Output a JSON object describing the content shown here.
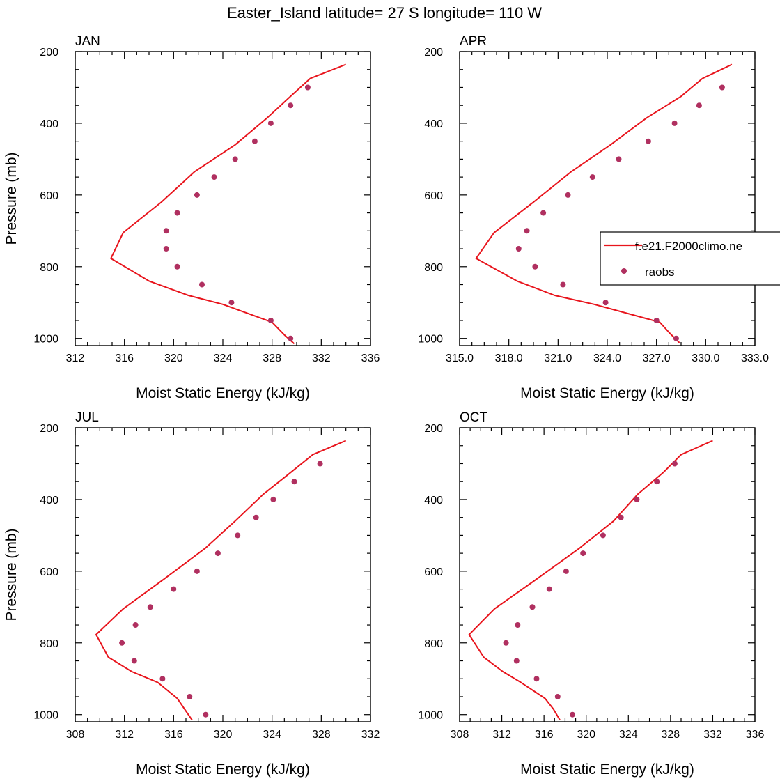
{
  "figure_title": "Easter_Island  latitude= 27 S longitude= 110 W",
  "legend": {
    "model_label": "f.e21.F2000climo.ne",
    "obs_label": "raobs",
    "model_color": "#e8141c",
    "obs_color": "#b03060"
  },
  "chart_data": [
    {
      "type": "line",
      "panel": "JAN",
      "xlabel": "Moist Static Energy (kJ/kg)",
      "ylabel": "Pressure (mb)",
      "xlim": [
        312,
        336
      ],
      "ylim": [
        1020,
        200
      ],
      "y_reversed": true,
      "x_ticks": [
        312,
        316,
        320,
        324,
        328,
        332,
        336
      ],
      "x_tick_labels": [
        "312",
        "316",
        "320",
        "324",
        "328",
        "332",
        "336"
      ],
      "y_ticks": [
        200,
        400,
        600,
        800,
        1000
      ],
      "y_tick_labels": [
        "200",
        "400",
        "600",
        "800",
        "1000"
      ],
      "series": [
        {
          "name": "f.e21.F2000climo.ne",
          "kind": "line",
          "x": [
            334.0,
            331.1,
            329.5,
            327.6,
            325.0,
            321.7,
            319.0,
            315.9,
            314.9,
            318.0,
            321.2,
            324.0,
            328.0,
            329.0,
            329.8
          ],
          "y": [
            236,
            275,
            325,
            385,
            460,
            535,
            620,
            705,
            777,
            840,
            880,
            905,
            955,
            990,
            1015
          ]
        },
        {
          "name": "raobs",
          "kind": "scatter",
          "x": [
            330.9,
            329.5,
            327.9,
            326.6,
            325.0,
            323.3,
            321.9,
            320.3,
            319.4,
            319.4,
            320.3,
            322.3,
            324.7,
            327.9,
            329.5
          ],
          "y": [
            300,
            350,
            400,
            450,
            500,
            550,
            600,
            650,
            700,
            750,
            800,
            850,
            900,
            950,
            1000
          ]
        }
      ]
    },
    {
      "type": "line",
      "panel": "APR",
      "xlabel": "Moist Static Energy (kJ/kg)",
      "ylabel": "",
      "xlim": [
        315,
        333
      ],
      "ylim": [
        1020,
        200
      ],
      "y_reversed": true,
      "x_ticks": [
        315,
        318,
        321,
        324,
        327,
        330,
        333
      ],
      "x_tick_labels": [
        "315.0",
        "318.0",
        "321.0",
        "324.0",
        "327.0",
        "330.0",
        "333.0"
      ],
      "y_ticks": [
        200,
        400,
        600,
        800,
        1000
      ],
      "y_tick_labels": [
        "200",
        "400",
        "600",
        "800",
        "1000"
      ],
      "series": [
        {
          "name": "f.e21.F2000climo.ne",
          "kind": "line",
          "x": [
            331.6,
            329.8,
            328.5,
            326.4,
            324.2,
            321.8,
            319.5,
            317.1,
            316.0,
            318.5,
            320.8,
            323.2,
            327.2,
            327.8,
            328.4
          ],
          "y": [
            236,
            275,
            325,
            385,
            460,
            535,
            620,
            705,
            777,
            840,
            880,
            905,
            955,
            985,
            1012
          ]
        },
        {
          "name": "raobs",
          "kind": "scatter",
          "x": [
            331.0,
            329.6,
            328.1,
            326.5,
            324.7,
            323.1,
            321.6,
            320.1,
            319.1,
            318.6,
            319.6,
            321.3,
            323.9,
            327.0,
            328.2
          ],
          "y": [
            300,
            350,
            400,
            450,
            500,
            550,
            600,
            650,
            700,
            750,
            800,
            850,
            900,
            950,
            1000
          ]
        }
      ]
    },
    {
      "type": "line",
      "panel": "JUL",
      "xlabel": "Moist Static Energy (kJ/kg)",
      "ylabel": "Pressure (mb)",
      "xlim": [
        308,
        332
      ],
      "ylim": [
        1020,
        200
      ],
      "y_reversed": true,
      "x_ticks": [
        308,
        312,
        316,
        320,
        324,
        328,
        332
      ],
      "x_tick_labels": [
        "308",
        "312",
        "316",
        "320",
        "324",
        "328",
        "332"
      ],
      "y_ticks": [
        200,
        400,
        600,
        800,
        1000
      ],
      "y_tick_labels": [
        "200",
        "400",
        "600",
        "800",
        "1000"
      ],
      "series": [
        {
          "name": "f.e21.F2000climo.ne",
          "kind": "line",
          "x": [
            330.0,
            327.3,
            325.5,
            323.3,
            321.0,
            318.6,
            315.3,
            311.9,
            309.7,
            310.7,
            312.6,
            314.7,
            316.3,
            316.9,
            317.5
          ],
          "y": [
            236,
            275,
            325,
            385,
            460,
            535,
            620,
            705,
            777,
            840,
            880,
            910,
            955,
            985,
            1015
          ]
        },
        {
          "name": "raobs",
          "kind": "scatter",
          "x": [
            327.9,
            325.8,
            324.1,
            322.7,
            321.2,
            319.6,
            317.9,
            316.0,
            314.1,
            312.9,
            311.8,
            312.8,
            315.1,
            317.3,
            318.6
          ],
          "y": [
            300,
            350,
            400,
            450,
            500,
            550,
            600,
            650,
            700,
            750,
            800,
            850,
            900,
            950,
            1000
          ]
        }
      ]
    },
    {
      "type": "line",
      "panel": "OCT",
      "xlabel": "Moist Static Energy (kJ/kg)",
      "ylabel": "",
      "xlim": [
        308,
        336
      ],
      "ylim": [
        1020,
        200
      ],
      "y_reversed": true,
      "x_ticks": [
        308,
        312,
        316,
        320,
        324,
        328,
        332,
        336
      ],
      "x_tick_labels": [
        "308",
        "312",
        "316",
        "320",
        "324",
        "328",
        "332",
        "336"
      ],
      "y_ticks": [
        200,
        400,
        600,
        800,
        1000
      ],
      "y_tick_labels": [
        "200",
        "400",
        "600",
        "800",
        "1000"
      ],
      "series": [
        {
          "name": "f.e21.F2000climo.ne",
          "kind": "line",
          "x": [
            332.0,
            329.0,
            327.3,
            324.9,
            322.6,
            319.4,
            315.4,
            311.3,
            308.9,
            310.3,
            312.1,
            313.8,
            316.1,
            316.9,
            317.5
          ],
          "y": [
            236,
            275,
            325,
            385,
            460,
            535,
            620,
            705,
            777,
            840,
            880,
            910,
            955,
            985,
            1015
          ]
        },
        {
          "name": "raobs",
          "kind": "scatter",
          "x": [
            328.4,
            326.7,
            324.8,
            323.3,
            321.6,
            319.7,
            318.1,
            316.5,
            314.9,
            313.5,
            312.4,
            313.4,
            315.3,
            317.3,
            318.7
          ],
          "y": [
            300,
            350,
            400,
            450,
            500,
            550,
            600,
            650,
            700,
            750,
            800,
            850,
            900,
            950,
            1000
          ]
        }
      ]
    }
  ]
}
